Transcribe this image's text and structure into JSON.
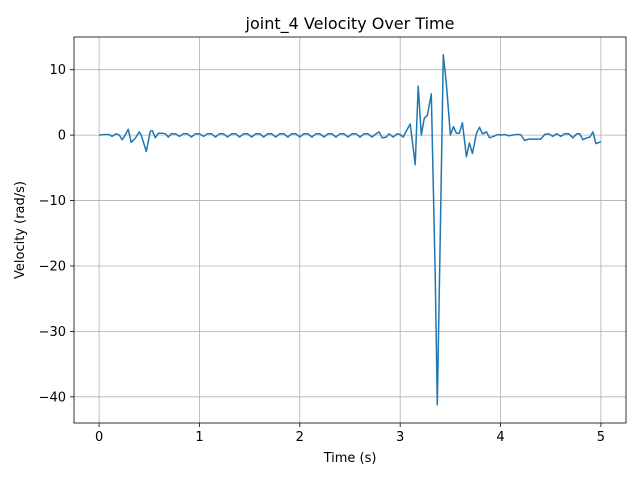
{
  "chart_data": {
    "type": "line",
    "title": "joint_4 Velocity Over Time",
    "xlabel": "Time (s)",
    "ylabel": "Velocity (rad/s)",
    "xlim": [
      -0.25,
      5.25
    ],
    "ylim": [
      -44,
      15
    ],
    "xticks": [
      0,
      1,
      2,
      3,
      4,
      5
    ],
    "yticks": [
      -40,
      -30,
      -20,
      -10,
      0,
      10
    ],
    "grid": true,
    "legend": "none",
    "series": [
      {
        "color": "#1f77b4",
        "points": [
          [
            0.0,
            0.0
          ],
          [
            0.05,
            0.1
          ],
          [
            0.1,
            0.1
          ],
          [
            0.13,
            -0.2
          ],
          [
            0.17,
            0.2
          ],
          [
            0.2,
            0.0
          ],
          [
            0.23,
            -0.7
          ],
          [
            0.26,
            0.0
          ],
          [
            0.29,
            0.9
          ],
          [
            0.32,
            -1.1
          ],
          [
            0.36,
            -0.5
          ],
          [
            0.4,
            0.5
          ],
          [
            0.42,
            0.0
          ],
          [
            0.47,
            -2.5
          ],
          [
            0.51,
            0.6
          ],
          [
            0.53,
            0.7
          ],
          [
            0.56,
            -0.4
          ],
          [
            0.59,
            0.3
          ],
          [
            0.63,
            0.3
          ],
          [
            0.66,
            0.2
          ],
          [
            0.69,
            -0.3
          ],
          [
            0.72,
            0.2
          ],
          [
            0.76,
            0.2
          ],
          [
            0.8,
            -0.2
          ],
          [
            0.84,
            0.2
          ],
          [
            0.88,
            0.2
          ],
          [
            0.92,
            -0.3
          ],
          [
            0.96,
            0.2
          ],
          [
            1.0,
            0.2
          ],
          [
            1.04,
            -0.2
          ],
          [
            1.08,
            0.2
          ],
          [
            1.12,
            0.2
          ],
          [
            1.16,
            -0.3
          ],
          [
            1.2,
            0.2
          ],
          [
            1.24,
            0.2
          ],
          [
            1.28,
            -0.3
          ],
          [
            1.32,
            0.2
          ],
          [
            1.36,
            0.2
          ],
          [
            1.4,
            -0.3
          ],
          [
            1.44,
            0.2
          ],
          [
            1.48,
            0.2
          ],
          [
            1.52,
            -0.3
          ],
          [
            1.56,
            0.2
          ],
          [
            1.6,
            0.2
          ],
          [
            1.64,
            -0.3
          ],
          [
            1.68,
            0.2
          ],
          [
            1.72,
            0.2
          ],
          [
            1.76,
            -0.3
          ],
          [
            1.8,
            0.2
          ],
          [
            1.84,
            0.2
          ],
          [
            1.88,
            -0.3
          ],
          [
            1.92,
            0.2
          ],
          [
            1.96,
            0.2
          ],
          [
            2.0,
            -0.3
          ],
          [
            2.04,
            0.2
          ],
          [
            2.08,
            0.2
          ],
          [
            2.12,
            -0.3
          ],
          [
            2.16,
            0.2
          ],
          [
            2.2,
            0.2
          ],
          [
            2.24,
            -0.3
          ],
          [
            2.28,
            0.2
          ],
          [
            2.32,
            0.2
          ],
          [
            2.36,
            -0.3
          ],
          [
            2.4,
            0.2
          ],
          [
            2.44,
            0.2
          ],
          [
            2.48,
            -0.3
          ],
          [
            2.52,
            0.2
          ],
          [
            2.56,
            0.2
          ],
          [
            2.6,
            -0.3
          ],
          [
            2.64,
            0.2
          ],
          [
            2.68,
            0.2
          ],
          [
            2.72,
            -0.3
          ],
          [
            2.76,
            0.2
          ],
          [
            2.79,
            0.5
          ],
          [
            2.82,
            -0.4
          ],
          [
            2.86,
            -0.3
          ],
          [
            2.89,
            0.2
          ],
          [
            2.93,
            -0.3
          ],
          [
            2.97,
            0.2
          ],
          [
            3.0,
            0.1
          ],
          [
            3.03,
            -0.3
          ],
          [
            3.06,
            0.6
          ],
          [
            3.1,
            1.7
          ],
          [
            3.13,
            -2.0
          ],
          [
            3.15,
            -4.5
          ],
          [
            3.18,
            7.5
          ],
          [
            3.21,
            0.0
          ],
          [
            3.24,
            2.6
          ],
          [
            3.27,
            3.0
          ],
          [
            3.31,
            6.3
          ],
          [
            3.35,
            -22.0
          ],
          [
            3.37,
            -41.2
          ],
          [
            3.4,
            -15.0
          ],
          [
            3.43,
            12.3
          ],
          [
            3.46,
            8.0
          ],
          [
            3.5,
            0.0
          ],
          [
            3.53,
            1.3
          ],
          [
            3.56,
            0.3
          ],
          [
            3.59,
            0.3
          ],
          [
            3.62,
            1.9
          ],
          [
            3.66,
            -3.3
          ],
          [
            3.69,
            -1.2
          ],
          [
            3.72,
            -2.8
          ],
          [
            3.76,
            0.3
          ],
          [
            3.79,
            1.2
          ],
          [
            3.82,
            0.2
          ],
          [
            3.86,
            0.5
          ],
          [
            3.89,
            -0.4
          ],
          [
            3.93,
            -0.2
          ],
          [
            3.97,
            0.1
          ],
          [
            4.0,
            0.0
          ],
          [
            4.04,
            0.1
          ],
          [
            4.08,
            -0.1
          ],
          [
            4.12,
            0.0
          ],
          [
            4.16,
            0.1
          ],
          [
            4.2,
            0.1
          ],
          [
            4.24,
            -0.8
          ],
          [
            4.28,
            -0.6
          ],
          [
            4.34,
            -0.6
          ],
          [
            4.4,
            -0.6
          ],
          [
            4.44,
            0.1
          ],
          [
            4.48,
            0.2
          ],
          [
            4.52,
            -0.2
          ],
          [
            4.56,
            0.2
          ],
          [
            4.6,
            -0.2
          ],
          [
            4.64,
            0.2
          ],
          [
            4.68,
            0.2
          ],
          [
            4.72,
            -0.4
          ],
          [
            4.76,
            0.2
          ],
          [
            4.79,
            0.2
          ],
          [
            4.82,
            -0.7
          ],
          [
            4.86,
            -0.4
          ],
          [
            4.89,
            -0.3
          ],
          [
            4.92,
            0.5
          ],
          [
            4.95,
            -1.3
          ],
          [
            5.0,
            -1.0
          ]
        ]
      }
    ]
  }
}
